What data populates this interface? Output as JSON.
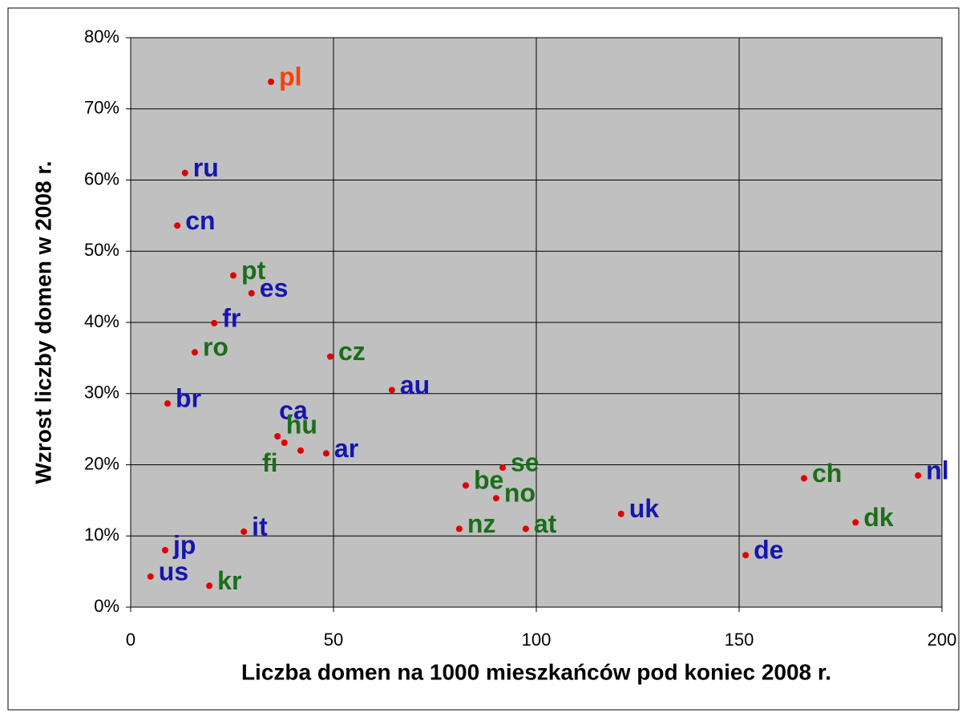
{
  "chart_data": {
    "type": "scatter",
    "x_label": "Liczba domen na 1000 mieszkańców pod koniec 2008 r.",
    "y_label": "Wzrost liczby domen w 2008 r.",
    "point_labels": [
      "pl",
      "ru",
      "cn",
      "pt",
      "es",
      "fr",
      "ro",
      "cz",
      "au",
      "br",
      "ca",
      "hu",
      "fi",
      "ar",
      "se",
      "be",
      "no",
      "nz",
      "at",
      "uk",
      "it",
      "jp",
      "us",
      "kr",
      "de",
      "ch",
      "dk",
      "nl"
    ],
    "x": [
      34.6,
      13.4,
      11.5,
      25.3,
      29.8,
      20.6,
      15.8,
      49.2,
      64.4,
      9.1,
      36.2,
      37.9,
      41.9,
      48.2,
      91.7,
      82.6,
      90.1,
      81.0,
      97.4,
      120.9,
      27.9,
      8.5,
      4.9,
      19.4,
      151.6,
      166.0,
      178.7,
      194.1
    ],
    "values": [
      73.8,
      61.0,
      53.6,
      46.6,
      44.1,
      39.9,
      35.8,
      35.2,
      30.5,
      28.6,
      24.0,
      23.1,
      22.0,
      21.6,
      19.6,
      17.1,
      15.3,
      11.0,
      11.0,
      13.1,
      10.6,
      8.0,
      4.3,
      3.0,
      7.3,
      18.1,
      11.9,
      18.5
    ],
    "label_colors": [
      "#ff3d00",
      "#1515b0",
      "#1515b0",
      "#1a6e1a",
      "#1515b0",
      "#1515b0",
      "#1a6e1a",
      "#1a6e1a",
      "#1515b0",
      "#1515b0",
      "#1515b0",
      "#1a6e1a",
      "#1a6e1a",
      "#1515b0",
      "#1a6e1a",
      "#1a6e1a",
      "#1a6e1a",
      "#1a6e1a",
      "#1a6e1a",
      "#1515b0",
      "#1515b0",
      "#1515b0",
      "#1515b0",
      "#1a6e1a",
      "#1515b0",
      "#1a6e1a",
      "#1a6e1a",
      "#1515b0"
    ],
    "marker_color": "#e00000",
    "plot_background": "#c0c0c0",
    "grid": true,
    "xlim": [
      0,
      200
    ],
    "xticks": [
      0,
      50,
      100,
      150,
      200
    ],
    "ylim": [
      0,
      80
    ],
    "yticks": [
      {
        "value": 0,
        "label": "0%"
      },
      {
        "value": 10,
        "label": "10%"
      },
      {
        "value": 20,
        "label": "20%"
      },
      {
        "value": 30,
        "label": "30%"
      },
      {
        "value": 40,
        "label": "40%"
      },
      {
        "value": 50,
        "label": "50%"
      },
      {
        "value": 60,
        "label": "60%"
      },
      {
        "value": 70,
        "label": "70%"
      },
      {
        "value": 80,
        "label": "80%"
      }
    ]
  }
}
